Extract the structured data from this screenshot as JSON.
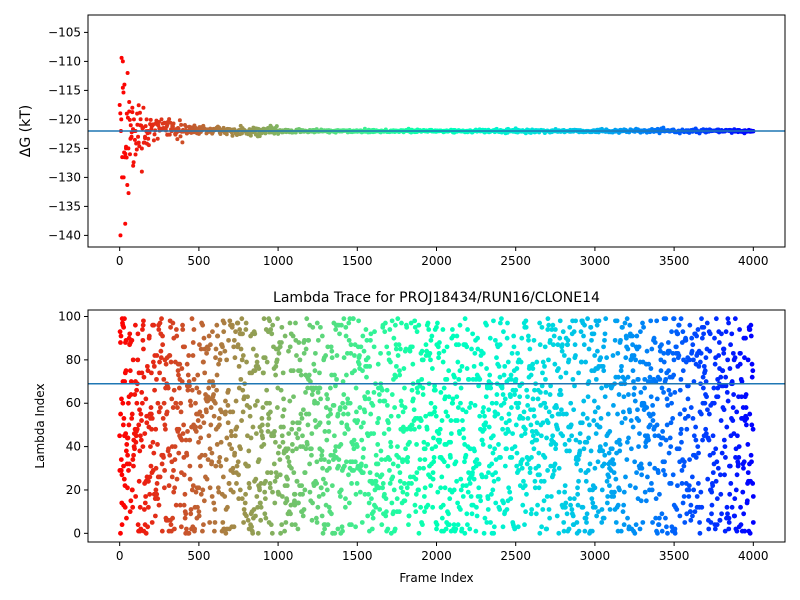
{
  "chart_data": [
    {
      "type": "scatter",
      "title": "",
      "xlabel": "",
      "ylabel": "ΔG (kT)",
      "xlim": [
        -200,
        4200
      ],
      "ylim": [
        -142,
        -102
      ],
      "xticks": [
        0,
        500,
        1000,
        1500,
        2000,
        2500,
        3000,
        3500,
        4000
      ],
      "yticks": [
        -140,
        -135,
        -130,
        -125,
        -120,
        -115,
        -110,
        -105
      ],
      "reference_line": {
        "y": -122.0,
        "color": "#1f77b4"
      },
      "colormap": "rainbow (reversed: red at frame 0 → violet at frame 4000)",
      "grid": false,
      "series": [
        {
          "description": "free energy estimate per frame; early frames scatter widely, then converge",
          "points": [
            [
              5,
              -140
            ],
            [
              10,
              -120
            ],
            [
              15,
              -130
            ],
            [
              20,
              -110
            ],
            [
              25,
              -130
            ],
            [
              30,
              -114
            ],
            [
              35,
              -138
            ],
            [
              40,
              -125
            ],
            [
              45,
              -119
            ],
            [
              50,
              -112
            ],
            [
              55,
              -125
            ],
            [
              60,
              -117
            ],
            [
              65,
              -126
            ],
            [
              70,
              -121
            ],
            [
              75,
              -123
            ],
            [
              80,
              -118
            ],
            [
              85,
              -128
            ],
            [
              90,
              -120
            ],
            [
              100,
              -122
            ],
            [
              110,
              -119
            ],
            [
              120,
              -124
            ],
            [
              130,
              -121
            ],
            [
              140,
              -129
            ],
            [
              150,
              -118
            ],
            [
              160,
              -123
            ],
            [
              170,
              -120
            ],
            [
              180,
              -122
            ],
            [
              200,
              -121
            ],
            [
              250,
              -121.5
            ],
            [
              300,
              -121
            ],
            [
              350,
              -122.5
            ],
            [
              400,
              -121.8
            ],
            [
              500,
              -122.5
            ],
            [
              600,
              -121.8
            ],
            [
              700,
              -122
            ],
            [
              800,
              -122.2
            ],
            [
              1000,
              -122.5
            ],
            [
              1500,
              -122.1
            ],
            [
              2000,
              -122.1
            ],
            [
              2500,
              -122.2
            ],
            [
              3000,
              -121.9
            ],
            [
              3500,
              -122.0
            ],
            [
              4000,
              -122.0
            ]
          ]
        }
      ]
    },
    {
      "type": "scatter",
      "title": "Lambda Trace for PROJ18434/RUN16/CLONE14",
      "xlabel": "Frame Index",
      "ylabel": "Lambda Index",
      "xlim": [
        -200,
        4200
      ],
      "ylim": [
        -4,
        103
      ],
      "xticks": [
        0,
        500,
        1000,
        1500,
        2000,
        2500,
        3000,
        3500,
        4000
      ],
      "yticks": [
        0,
        20,
        40,
        60,
        80,
        100
      ],
      "reference_line": {
        "y": 69,
        "color": "#1f77b4"
      },
      "colormap": "rainbow (reversed: red at frame 0 → violet at frame 4000)",
      "grid": false,
      "series": [
        {
          "description": "lambda index visited at each frame; roughly uniform coverage of 0–99 for frames 0–4000",
          "frames": [
            0,
            4000
          ],
          "lambda_range": [
            0,
            99
          ],
          "sample_points": [
            [
              5,
              88
            ],
            [
              10,
              29
            ],
            [
              15,
              4
            ],
            [
              20,
              60
            ],
            [
              25,
              95
            ],
            [
              30,
              45
            ],
            [
              35,
              12
            ],
            [
              40,
              75
            ],
            [
              50,
              36
            ],
            [
              60,
              90
            ],
            [
              80,
              20
            ],
            [
              100,
              70
            ],
            [
              150,
              98
            ],
            [
              200,
              55
            ],
            [
              500,
              10
            ],
            [
              1000,
              85
            ],
            [
              1500,
              40
            ],
            [
              2000,
              2
            ],
            [
              2500,
              66
            ],
            [
              3000,
              30
            ],
            [
              3500,
              99
            ],
            [
              4000,
              5
            ]
          ]
        }
      ]
    }
  ]
}
